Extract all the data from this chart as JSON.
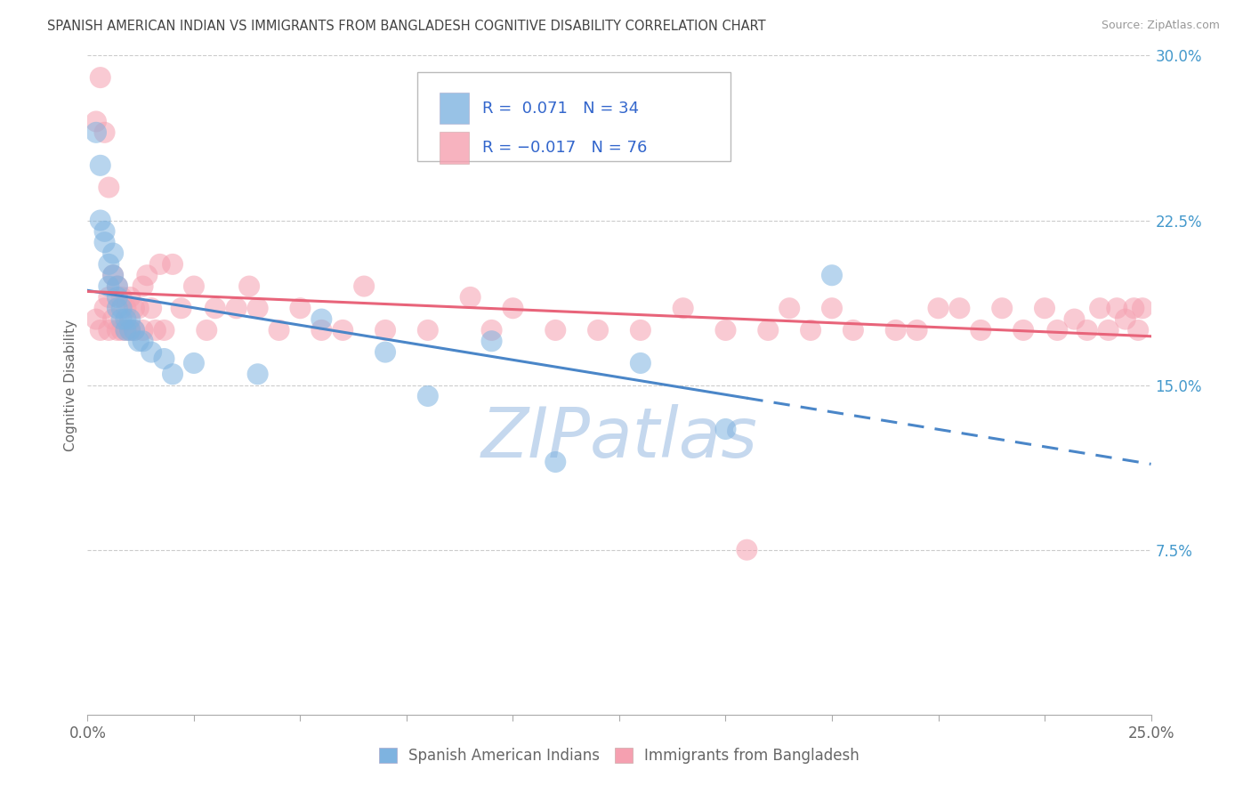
{
  "title": "SPANISH AMERICAN INDIAN VS IMMIGRANTS FROM BANGLADESH COGNITIVE DISABILITY CORRELATION CHART",
  "source": "Source: ZipAtlas.com",
  "ylabel": "Cognitive Disability",
  "xlim": [
    0.0,
    0.25
  ],
  "ylim": [
    0.0,
    0.3
  ],
  "xticks": [
    0.0,
    0.025,
    0.05,
    0.075,
    0.1,
    0.125,
    0.15,
    0.175,
    0.2,
    0.225,
    0.25
  ],
  "yticks_right": [
    0.075,
    0.15,
    0.225,
    0.3
  ],
  "legend_label1": "Spanish American Indians",
  "legend_label2": "Immigrants from Bangladesh",
  "R1": 0.071,
  "N1": 34,
  "R2": -0.017,
  "N2": 76,
  "color1": "#7eb3e0",
  "color2": "#f5a0b0",
  "trend_color1": "#4a86c8",
  "trend_color2": "#e8647a",
  "background_color": "#ffffff",
  "grid_color": "#cccccc",
  "watermark_color": "#c5d8ee",
  "blue_x": [
    0.002,
    0.003,
    0.003,
    0.004,
    0.004,
    0.005,
    0.005,
    0.006,
    0.006,
    0.007,
    0.007,
    0.007,
    0.008,
    0.008,
    0.009,
    0.009,
    0.01,
    0.01,
    0.011,
    0.012,
    0.013,
    0.015,
    0.018,
    0.02,
    0.025,
    0.04,
    0.055,
    0.07,
    0.08,
    0.095,
    0.11,
    0.13,
    0.15,
    0.175
  ],
  "blue_y": [
    0.265,
    0.25,
    0.225,
    0.22,
    0.215,
    0.205,
    0.195,
    0.21,
    0.2,
    0.195,
    0.19,
    0.185,
    0.185,
    0.18,
    0.18,
    0.175,
    0.18,
    0.175,
    0.175,
    0.17,
    0.17,
    0.165,
    0.162,
    0.155,
    0.16,
    0.155,
    0.18,
    0.165,
    0.145,
    0.17,
    0.115,
    0.16,
    0.13,
    0.2
  ],
  "pink_x": [
    0.002,
    0.002,
    0.003,
    0.003,
    0.004,
    0.004,
    0.005,
    0.005,
    0.005,
    0.006,
    0.006,
    0.007,
    0.007,
    0.008,
    0.008,
    0.009,
    0.009,
    0.01,
    0.01,
    0.011,
    0.011,
    0.012,
    0.013,
    0.013,
    0.014,
    0.015,
    0.016,
    0.017,
    0.018,
    0.02,
    0.022,
    0.025,
    0.028,
    0.03,
    0.035,
    0.038,
    0.04,
    0.045,
    0.05,
    0.055,
    0.06,
    0.065,
    0.07,
    0.08,
    0.09,
    0.095,
    0.1,
    0.11,
    0.12,
    0.13,
    0.14,
    0.15,
    0.155,
    0.16,
    0.165,
    0.17,
    0.175,
    0.18,
    0.19,
    0.195,
    0.2,
    0.205,
    0.21,
    0.215,
    0.22,
    0.225,
    0.228,
    0.232,
    0.235,
    0.238,
    0.24,
    0.242,
    0.244,
    0.246,
    0.247,
    0.248
  ],
  "pink_y": [
    0.27,
    0.18,
    0.29,
    0.175,
    0.265,
    0.185,
    0.24,
    0.175,
    0.19,
    0.2,
    0.18,
    0.195,
    0.175,
    0.19,
    0.175,
    0.185,
    0.175,
    0.19,
    0.175,
    0.185,
    0.175,
    0.185,
    0.195,
    0.175,
    0.2,
    0.185,
    0.175,
    0.205,
    0.175,
    0.205,
    0.185,
    0.195,
    0.175,
    0.185,
    0.185,
    0.195,
    0.185,
    0.175,
    0.185,
    0.175,
    0.175,
    0.195,
    0.175,
    0.175,
    0.19,
    0.175,
    0.185,
    0.175,
    0.175,
    0.175,
    0.185,
    0.175,
    0.075,
    0.175,
    0.185,
    0.175,
    0.185,
    0.175,
    0.175,
    0.175,
    0.185,
    0.185,
    0.175,
    0.185,
    0.175,
    0.185,
    0.175,
    0.18,
    0.175,
    0.185,
    0.175,
    0.185,
    0.18,
    0.185,
    0.175,
    0.185
  ]
}
